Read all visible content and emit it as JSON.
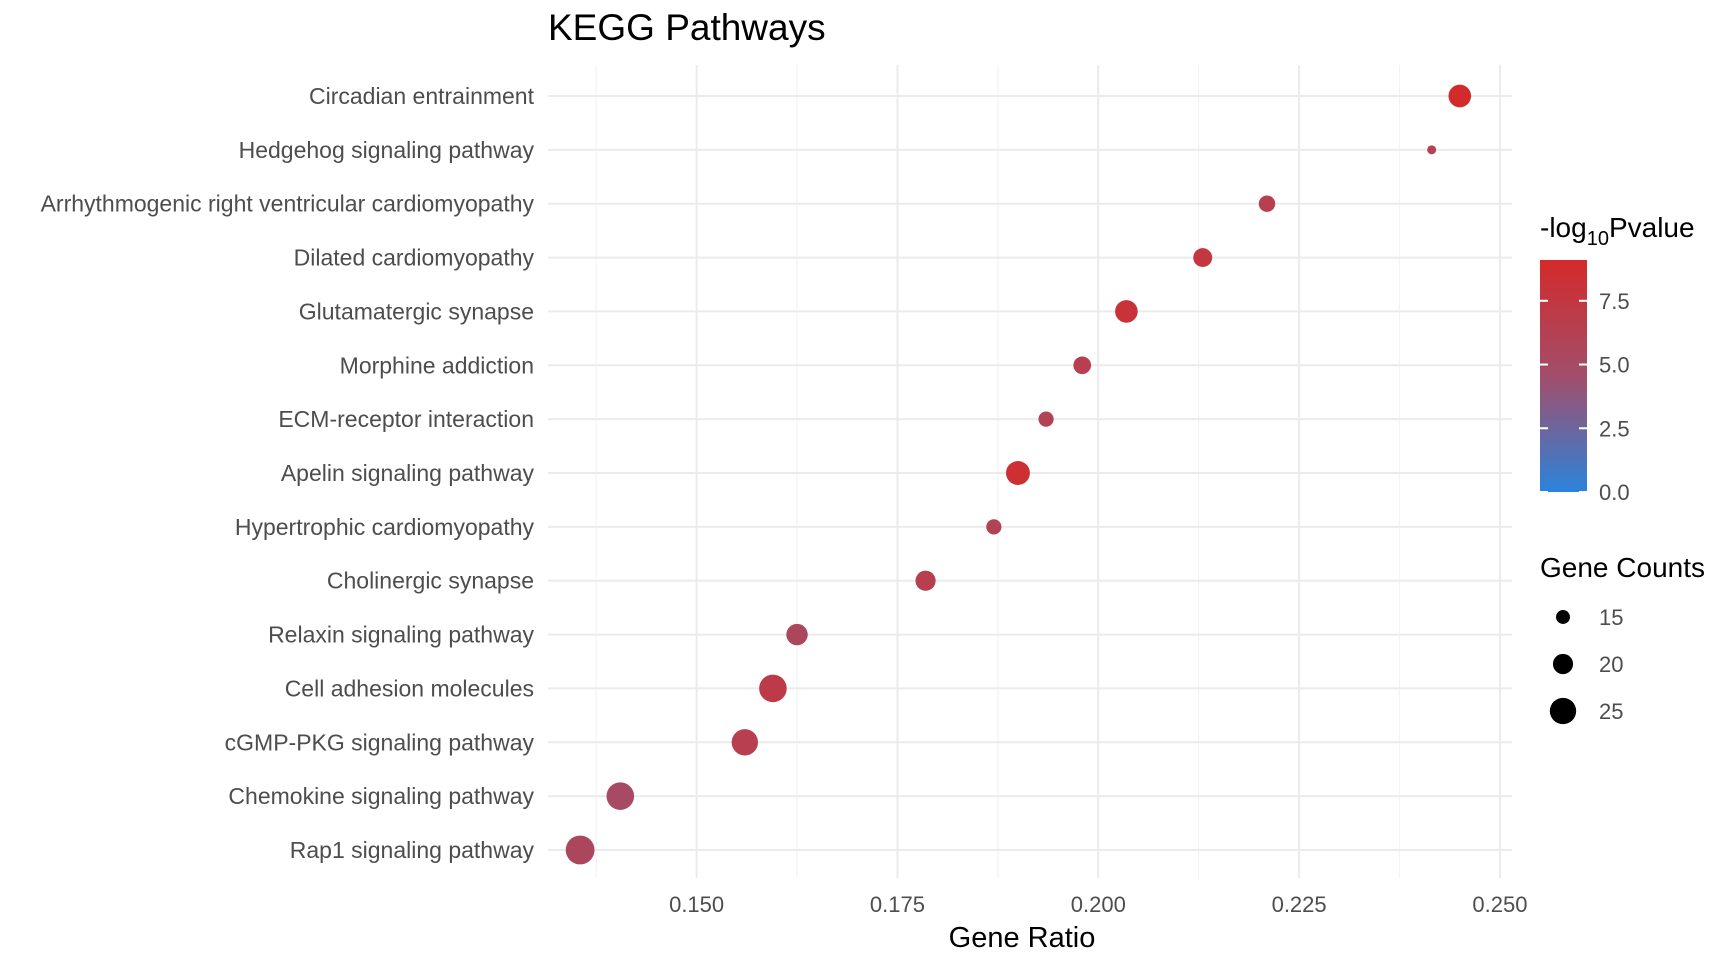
{
  "chart_data": {
    "type": "scatter",
    "title": "KEGG Pathways",
    "xlabel": "Gene Ratio",
    "ylabel": "",
    "xlim": [
      0.1315,
      0.2515
    ],
    "x_ticks": [
      "0.150",
      "0.175",
      "0.200",
      "0.225",
      "0.250"
    ],
    "x_tick_values": [
      0.15,
      0.175,
      0.2,
      0.225,
      0.25
    ],
    "grid": true,
    "points": [
      {
        "pathway": "Circadian entrainment",
        "gene_ratio": 0.245,
        "log10p": 9.0,
        "count": 22
      },
      {
        "pathway": "Hedgehog signaling pathway",
        "gene_ratio": 0.2415,
        "log10p": 6.0,
        "count": 11
      },
      {
        "pathway": "Arrhythmogenic right ventricular cardiomyopathy",
        "gene_ratio": 0.221,
        "log10p": 6.5,
        "count": 17
      },
      {
        "pathway": "Dilated cardiomyopathy",
        "gene_ratio": 0.213,
        "log10p": 7.5,
        "count": 19
      },
      {
        "pathway": "Glutamatergic synapse",
        "gene_ratio": 0.2035,
        "log10p": 8.0,
        "count": 22
      },
      {
        "pathway": "Morphine addiction",
        "gene_ratio": 0.198,
        "log10p": 6.5,
        "count": 18
      },
      {
        "pathway": "ECM-receptor interaction",
        "gene_ratio": 0.1935,
        "log10p": 6.0,
        "count": 16
      },
      {
        "pathway": "Apelin signaling pathway",
        "gene_ratio": 0.19,
        "log10p": 8.5,
        "count": 23
      },
      {
        "pathway": "Hypertrophic cardiomyopathy",
        "gene_ratio": 0.187,
        "log10p": 6.0,
        "count": 16
      },
      {
        "pathway": "Cholinergic synapse",
        "gene_ratio": 0.1785,
        "log10p": 6.5,
        "count": 20
      },
      {
        "pathway": "Relaxin signaling pathway",
        "gene_ratio": 0.1625,
        "log10p": 5.5,
        "count": 21
      },
      {
        "pathway": "Cell adhesion molecules",
        "gene_ratio": 0.1595,
        "log10p": 7.0,
        "count": 26
      },
      {
        "pathway": "cGMP-PKG signaling pathway",
        "gene_ratio": 0.156,
        "log10p": 6.5,
        "count": 25
      },
      {
        "pathway": "Chemokine signaling pathway",
        "gene_ratio": 0.1405,
        "log10p": 5.0,
        "count": 26
      },
      {
        "pathway": "Rap1 signaling pathway",
        "gene_ratio": 0.1355,
        "log10p": 5.5,
        "count": 27
      }
    ],
    "color_legend": {
      "title_prefix": "-log",
      "title_subscript": "10",
      "title_suffix": "Pvalue",
      "range": [
        0,
        9.1
      ],
      "low_color": "#2b83dc",
      "mid_color": "#a24e6a",
      "high_color": "#d42a2a",
      "ticks": [
        {
          "label": "7.5",
          "value": 7.5
        },
        {
          "label": "5.0",
          "value": 5.0
        },
        {
          "label": "2.5",
          "value": 2.5
        },
        {
          "label": "0.0",
          "value": 0.0
        }
      ]
    },
    "size_legend": {
      "title": "Gene Counts",
      "entries": [
        {
          "label": "15",
          "value": 15
        },
        {
          "label": "20",
          "value": 20
        },
        {
          "label": "25",
          "value": 25
        }
      ]
    }
  }
}
